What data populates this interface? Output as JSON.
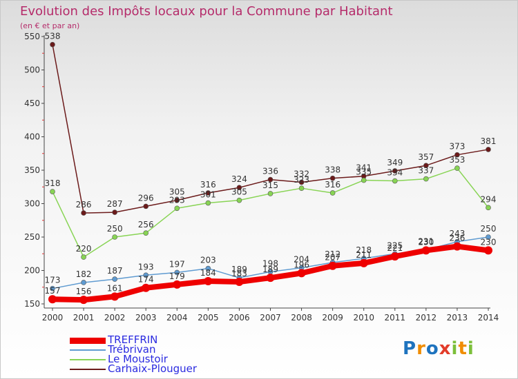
{
  "title": "Evolution des Impôts locaux pour la Commune par Habitant",
  "subtitle": "(en € et par an)",
  "logo": {
    "text": "Proxiti",
    "colors": [
      "#1e73be",
      "#f08c00",
      "#e23c2a",
      "#7cbf3a"
    ]
  },
  "chart_data": {
    "type": "line",
    "x": [
      "2000",
      "2001",
      "2002",
      "2003",
      "2004",
      "2005",
      "2006",
      "2007",
      "2008",
      "2009",
      "2010",
      "2011",
      "2012",
      "2013",
      "2014"
    ],
    "ylim": [
      150,
      550
    ],
    "yticks": [
      150,
      200,
      250,
      300,
      350,
      400,
      450,
      500,
      550
    ],
    "grid": false,
    "legend": "bottom-left",
    "series": [
      {
        "name": "TREFFRIN",
        "color": "#ee0000",
        "values": [
          157,
          156,
          161,
          174,
          179,
          184,
          183,
          189,
          196,
          207,
          211,
          221,
          230,
          236,
          230
        ]
      },
      {
        "name": "Trébrivan",
        "color": "#5f9bd1",
        "values": [
          173,
          182,
          187,
          193,
          197,
          203,
          189,
          198,
          204,
          212,
          218,
          225,
          231,
          243,
          250
        ]
      },
      {
        "name": "Le Moustoir",
        "color": "#88d454",
        "values": [
          318,
          220,
          250,
          256,
          293,
          301,
          305,
          315,
          323,
          316,
          335,
          334,
          337,
          353,
          294
        ]
      },
      {
        "name": "Carhaix-Plouguer",
        "color": "#6b1a1a",
        "values": [
          538,
          286,
          287,
          296,
          305,
          316,
          324,
          336,
          332,
          338,
          341,
          349,
          357,
          373,
          381
        ]
      }
    ]
  }
}
